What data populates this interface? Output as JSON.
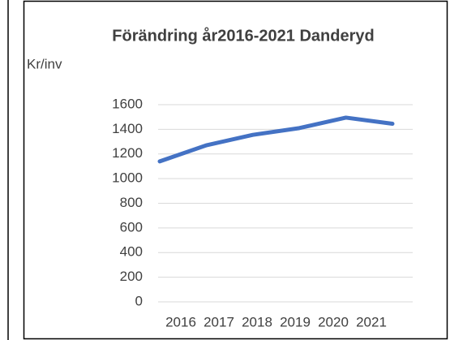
{
  "chart_data": {
    "type": "line",
    "title": "Förändring år2016-2021 Danderyd",
    "y_label": "Kr/inv",
    "categories": [
      "2016",
      "2017",
      "2018",
      "2019",
      "2020",
      "2021"
    ],
    "series": [
      {
        "name": "Danderyd",
        "color": "#4472c4",
        "values": [
          1140,
          1270,
          1355,
          1410,
          1495,
          1445
        ]
      }
    ],
    "ylim": [
      0,
      1600
    ],
    "yticks": [
      0,
      200,
      400,
      600,
      800,
      1000,
      1200,
      1400,
      1600
    ],
    "grid": true
  }
}
